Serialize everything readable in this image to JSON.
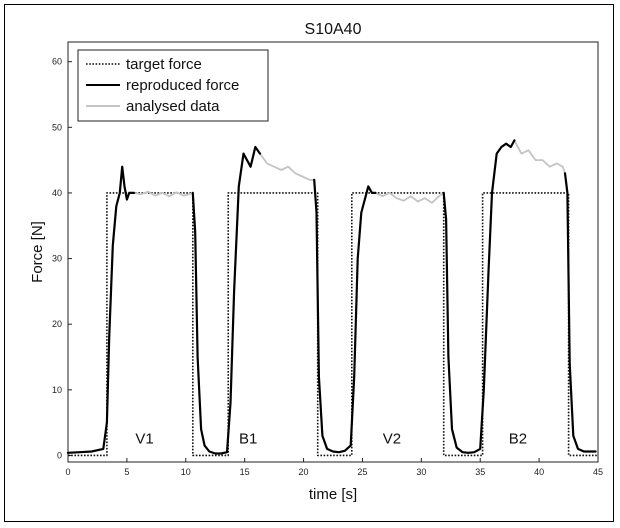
{
  "chart_data": {
    "type": "line",
    "title": "S10A40",
    "xlabel": "time [s]",
    "ylabel": "Force [N]",
    "xlim": [
      0,
      45
    ],
    "ylim": [
      -1,
      63
    ],
    "xticks": [
      0,
      5,
      10,
      15,
      20,
      25,
      30,
      35,
      40,
      45
    ],
    "yticks": [
      0,
      10,
      20,
      30,
      40,
      50,
      60
    ],
    "grid": false,
    "legend_position": "top-left",
    "annotations": [
      {
        "text": "V1",
        "x": 6.5,
        "y": 1.8
      },
      {
        "text": "B1",
        "x": 15.3,
        "y": 1.8
      },
      {
        "text": "V2",
        "x": 27.5,
        "y": 1.8
      },
      {
        "text": "B2",
        "x": 38.2,
        "y": 1.8
      }
    ],
    "series": [
      {
        "name": "target force",
        "style": "dotted",
        "color": "#111111",
        "x": [
          0,
          3.3,
          3.3,
          10.6,
          10.6,
          13.6,
          13.6,
          21.2,
          21.2,
          24.1,
          24.1,
          31.9,
          31.9,
          35.2,
          35.2,
          42.5,
          42.5,
          45
        ],
        "y": [
          0,
          0,
          40,
          40,
          0,
          0,
          40,
          40,
          0,
          0,
          40,
          40,
          0,
          0,
          40,
          40,
          0,
          0
        ]
      },
      {
        "name": "reproduced force",
        "style": "solid",
        "color": "#000000",
        "segments": [
          {
            "x": [
              0,
              1,
              2,
              3.0,
              3.3,
              3.5,
              3.8,
              4.1,
              4.4,
              4.6,
              4.8,
              5.0,
              5.2,
              5.4,
              5.6
            ],
            "y": [
              0.4,
              0.5,
              0.6,
              1.0,
              5,
              18,
              32,
              38,
              40,
              44,
              41,
              39,
              40,
              40,
              40
            ]
          },
          {
            "x": [
              10.6,
              10.8,
              11.0,
              11.3,
              11.6,
              12.0,
              12.5,
              13.0,
              13.5,
              13.8,
              14.1,
              14.5,
              14.9,
              15.2,
              15.5,
              15.9,
              16.3
            ],
            "y": [
              40,
              34,
              15,
              4,
              1.5,
              0.6,
              0.3,
              0.3,
              0.5,
              8,
              25,
              41,
              46,
              45,
              44,
              47,
              46
            ]
          },
          {
            "x": [
              20.9,
              21.1,
              21.3,
              21.6,
              22.0,
              22.5,
              23.0,
              23.5,
              24.0,
              24.3,
              24.6,
              24.9,
              25.2,
              25.5,
              25.8,
              26.1
            ],
            "y": [
              42,
              37,
              12,
              3,
              1.0,
              0.6,
              0.5,
              0.7,
              1.5,
              12,
              30,
              37,
              39,
              41,
              40,
              40
            ]
          },
          {
            "x": [
              31.9,
              32.1,
              32.3,
              32.6,
              33.0,
              33.5,
              34.0,
              34.5,
              35.0,
              35.3,
              35.7,
              36.0,
              36.4,
              36.8,
              37.2,
              37.6,
              37.9
            ],
            "y": [
              40,
              36,
              15,
              4,
              1.2,
              0.5,
              0.4,
              0.5,
              1.0,
              10,
              28,
              40,
              46,
              47,
              47.5,
              47,
              48
            ]
          },
          {
            "x": [
              42.2,
              42.4,
              42.6,
              42.9,
              43.3,
              43.8,
              44.3,
              44.8
            ],
            "y": [
              43,
              40,
              14,
              3,
              1.0,
              0.6,
              0.6,
              0.6
            ]
          }
        ]
      },
      {
        "name": "analysed data",
        "style": "solid",
        "color": "#c4c4c4",
        "segments": [
          {
            "x": [
              5.6,
              6.2,
              6.8,
              7.4,
              8.0,
              8.6,
              9.2,
              9.8,
              10.3,
              10.6
            ],
            "y": [
              40,
              39.8,
              40.2,
              39.6,
              40,
              39.5,
              40.1,
              39.6,
              39.8,
              40
            ]
          },
          {
            "x": [
              16.3,
              16.9,
              17.5,
              18.1,
              18.7,
              19.3,
              19.9,
              20.5,
              20.9
            ],
            "y": [
              46,
              44.5,
              44,
              43.5,
              44,
              43,
              42.5,
              42,
              42
            ]
          },
          {
            "x": [
              26.1,
              26.7,
              27.3,
              27.9,
              28.5,
              29.1,
              29.7,
              30.3,
              30.9,
              31.5,
              31.9
            ],
            "y": [
              40,
              39.5,
              40,
              39.2,
              38.8,
              39.5,
              38.7,
              39.2,
              38.5,
              39.5,
              40
            ]
          },
          {
            "x": [
              37.9,
              38.5,
              39.1,
              39.7,
              40.3,
              40.9,
              41.5,
              42.0,
              42.2
            ],
            "y": [
              48,
              46,
              46.5,
              45,
              45,
              44,
              44.5,
              44,
              43
            ]
          }
        ]
      }
    ]
  }
}
